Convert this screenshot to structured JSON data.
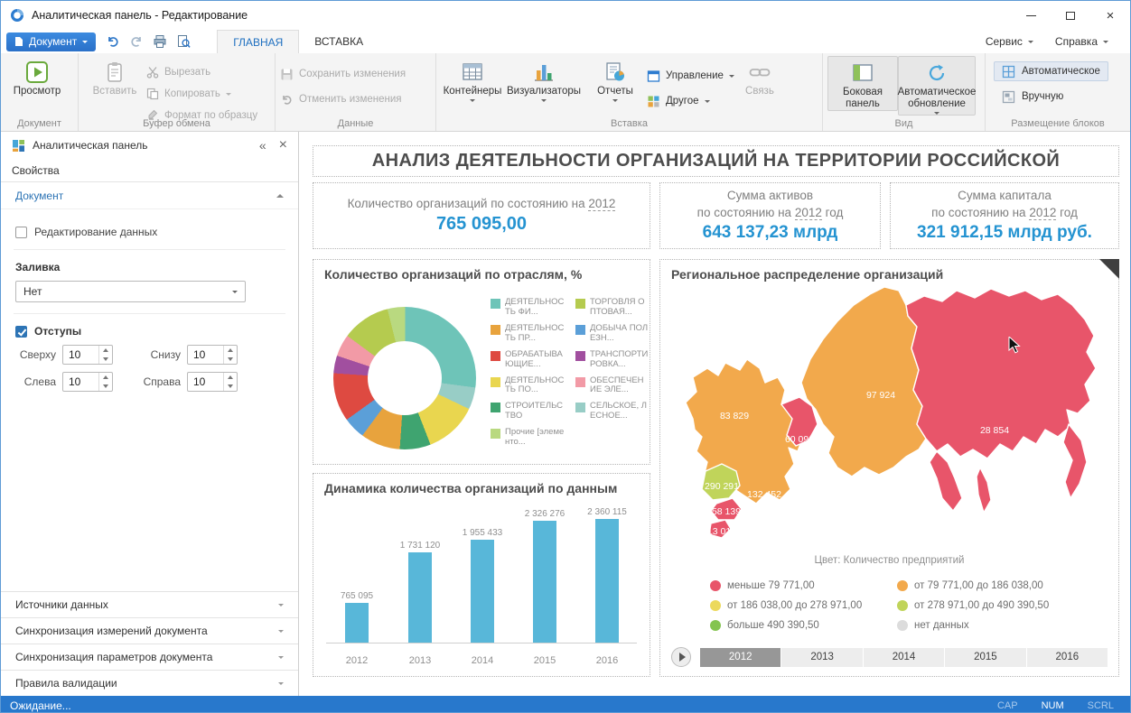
{
  "window": {
    "title": "Аналитическая панель - Редактирование"
  },
  "quick_access": {
    "document": "Документ"
  },
  "ribbon": {
    "tabs": [
      {
        "label": "ГЛАВНАЯ",
        "active": true
      },
      {
        "label": "ВСТАВКА",
        "active": false
      }
    ],
    "menus": {
      "service": "Сервис",
      "help": "Справка"
    },
    "groups": {
      "document": {
        "label": "Документ",
        "preview": "Просмотр"
      },
      "clipboard": {
        "label": "Буфер обмена",
        "paste": "Вставить",
        "cut": "Вырезать",
        "copy": "Копировать",
        "format_painter": "Формат по образцу"
      },
      "data": {
        "label": "Данные",
        "save": "Сохранить изменения",
        "discard": "Отменить изменения"
      },
      "insert": {
        "label": "Вставка",
        "containers": "Контейнеры",
        "visualizers": "Визуализаторы",
        "reports": "Отчеты",
        "manage": "Управление",
        "other": "Другое",
        "link": "Связь"
      },
      "view": {
        "label": "Вид",
        "side_panel": "Боковая панель",
        "auto_refresh": "Автоматическое обновление"
      },
      "blocks": {
        "label": "Размещение блоков",
        "auto": "Автоматическое",
        "manual": "Вручную"
      }
    }
  },
  "sidebar": {
    "title": "Аналитическая панель",
    "properties_label": "Свойства",
    "document_section": "Документ",
    "edit_data_label": "Редактирование данных",
    "fill_label": "Заливка",
    "fill_value": "Нет",
    "margins_label": "Отступы",
    "margin_top_label": "Сверху",
    "margin_top_value": "10",
    "margin_bottom_label": "Снизу",
    "margin_bottom_value": "10",
    "margin_left_label": "Слева",
    "margin_left_value": "10",
    "margin_right_label": "Справа",
    "margin_right_value": "10",
    "accordions": [
      "Источники данных",
      "Синхронизация измерений документа",
      "Синхронизация параметров документа",
      "Правила валидации"
    ]
  },
  "dashboard": {
    "title": "АНАЛИЗ ДЕЯТЕЛЬНОСТИ ОРГАНИЗАЦИЙ НА ТЕРРИТОРИИ РОССИЙСКОЙ",
    "kpi1": {
      "label_prefix": "Количество организаций по состоянию на ",
      "year": "2012",
      "value": "765 095,00"
    },
    "kpi2": {
      "line1": "Сумма активов",
      "line2_prefix": "по состоянию на ",
      "year": "2012",
      "line2_suffix": " год",
      "value": "643 137,23 млрд"
    },
    "kpi3": {
      "line1": "Сумма капитала",
      "line2_prefix": "по состоянию на ",
      "year": "2012",
      "line2_suffix": " год",
      "value": "321 912,15 млрд руб."
    },
    "pie_title": "Количество организаций по отраслям, %",
    "bar_title": "Динамика количества организаций по данным",
    "map_title": "Региональное распределение организаций",
    "map_caption": "Цвет: Количество предприятий"
  },
  "status": {
    "text": "Ожидание...",
    "cap": "CAP",
    "num": "NUM",
    "scroll": "SCRL"
  },
  "colors": {
    "accent_blue": "#2493d1",
    "bar": "#58b7d9",
    "status_bar": "#2878cc"
  },
  "chart_data": [
    {
      "type": "pie",
      "donut": true,
      "title": "Количество организаций по отраслям, %",
      "legend_position": "right",
      "slices": [
        {
          "label": "Прочие [элементо...",
          "value": 4,
          "color": "#b9d980"
        },
        {
          "label": "ДЕЯТЕЛЬНОСТЬ ФИ...",
          "value": 27,
          "color": "#6ec4b8"
        },
        {
          "label": "СЕЛЬСКОЕ, ЛЕСНОЕ...",
          "value": 5,
          "color": "#98cdc6"
        },
        {
          "label": "ДЕЯТЕЛЬНОСТЬ ПО...",
          "value": 12,
          "color": "#e9d64f"
        },
        {
          "label": "СТРОИТЕЛЬСТВО",
          "value": 7,
          "color": "#3fa470"
        },
        {
          "label": "ДЕЯТЕЛЬНОСТЬ ПР...",
          "value": 9,
          "color": "#e8a33d"
        },
        {
          "label": "ДОБЫЧА ПОЛЕЗН...",
          "value": 5,
          "color": "#5b9fd8"
        },
        {
          "label": "ОБРАБАТЫВАЮЩИЕ...",
          "value": 11,
          "color": "#de4a41"
        },
        {
          "label": "ТРАНСПОРТИРОВКА...",
          "value": 4,
          "color": "#a14f9f"
        },
        {
          "label": "ОБЕСПЕЧЕНИЕ ЭЛЕ...",
          "value": 5,
          "color": "#f29aa6"
        },
        {
          "label": "ТОРГОВЛЯ ОПТОВАЯ...",
          "value": 11,
          "color": "#b5cb4f"
        }
      ]
    },
    {
      "type": "bar",
      "title": "Динамика количества организаций по данным",
      "categories": [
        "2012",
        "2013",
        "2014",
        "2015",
        "2016"
      ],
      "values": [
        765095,
        1731120,
        1955433,
        2326276,
        2360115
      ],
      "labels": [
        "765 095",
        "1 731 120",
        "1 955 433",
        "2 326 276",
        "2 360 115"
      ],
      "bar_color": "#58b7d9",
      "ylim": [
        0,
        2500000
      ],
      "grid": false
    },
    {
      "type": "heatmap",
      "subtype": "choropleth-map",
      "title": "Региональное распределение организаций",
      "color_by": "Количество предприятий",
      "regions": [
        {
          "label": "83 829",
          "value": 83829,
          "color": "#f2a94c"
        },
        {
          "label": "97 924",
          "value": 97924,
          "color": "#f2a94c"
        },
        {
          "label": "60 090",
          "value": 60090,
          "color": "#e8556a"
        },
        {
          "label": "28 854",
          "value": 28854,
          "color": "#e8556a"
        },
        {
          "label": "132 452",
          "value": 132452,
          "color": "#f2a94c"
        },
        {
          "label": "290 291",
          "value": 290291,
          "color": "#c0d45a"
        },
        {
          "label": "58 139",
          "value": 58139,
          "color": "#e8556a"
        },
        {
          "label": "13 016",
          "value": 13016,
          "color": "#e8556a"
        }
      ],
      "legend": [
        {
          "label": "меньше 79 771,00",
          "color": "#e8556a"
        },
        {
          "label": "от 79 771,00 до 186 038,00",
          "color": "#f2a94c"
        },
        {
          "label": "от 186 038,00 до 278 971,00",
          "color": "#ecd95c"
        },
        {
          "label": "от 278 971,00 до 490 390,50",
          "color": "#c0d45a"
        },
        {
          "label": "больше 490 390,50",
          "color": "#84c450"
        },
        {
          "label": "нет данных",
          "color": "#dcdcdc"
        }
      ],
      "timeline": [
        "2012",
        "2013",
        "2014",
        "2015",
        "2016"
      ],
      "selected_year": "2012"
    }
  ]
}
